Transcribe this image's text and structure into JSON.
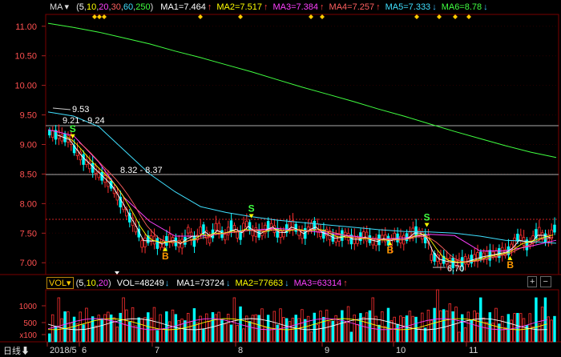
{
  "price_panel": {
    "indicator_label": "MA",
    "params": [
      "5",
      "10",
      "20",
      "30",
      "60",
      "250"
    ],
    "ma": [
      {
        "label": "MA1=7.464",
        "arrow": "↑",
        "color": "#ffffff"
      },
      {
        "label": "MA2=7.517",
        "arrow": "↑",
        "color": "#ffff00"
      },
      {
        "label": "MA3=7.384",
        "arrow": "↑",
        "color": "#ff40ff"
      },
      {
        "label": "MA4=7.257",
        "arrow": "↑",
        "color": "#ff6060"
      },
      {
        "label": "MA5=7.333",
        "arrow": "↓",
        "color": "#40e0ff"
      },
      {
        "label": "MA6=8.78",
        "arrow": "↓",
        "color": "#40ff40"
      }
    ],
    "y_ticks": [
      "11.00",
      "10.50",
      "10.00",
      "9.50",
      "9.00",
      "8.50",
      "8.00",
      "7.50",
      "7.00"
    ],
    "annotations": {
      "high": "9.53",
      "range1": "9.21 - 9.24",
      "range2": "8.32 - 8.37",
      "low": "6.70"
    },
    "signals": [
      {
        "text": "S",
        "x_day": 8,
        "price": 9.05
      },
      {
        "text": "B",
        "x_day": 38,
        "price": 7.25
      },
      {
        "text": "S",
        "x_day": 66,
        "price": 7.7
      },
      {
        "text": "B",
        "x_day": 111,
        "price": 7.35
      },
      {
        "text": "S",
        "x_day": 123,
        "price": 7.55
      },
      {
        "text": "B",
        "x_day": 150,
        "price": 7.1
      }
    ]
  },
  "vol_panel": {
    "indicator_label": "VOL",
    "params": [
      "5",
      "10",
      "20"
    ],
    "vol": {
      "label": "VOL=48249",
      "arrow": "↓",
      "color": "#ffffff"
    },
    "ma": [
      {
        "label": "MA1=73724",
        "arrow": "↓",
        "color": "#ffffff"
      },
      {
        "label": "MA2=77663",
        "arrow": "↓",
        "color": "#ffff00"
      },
      {
        "label": "MA3=63314",
        "arrow": "↑",
        "color": "#ff40ff"
      }
    ],
    "y_ticks": [
      "1000",
      "500",
      "x100"
    ]
  },
  "time_axis": {
    "period": "日线",
    "labels": [
      "2018/5",
      "6",
      "7",
      "8",
      "9",
      "10",
      "11"
    ]
  },
  "chart_data": {
    "type": "candlestick",
    "ylim": [
      6.8,
      11.2
    ],
    "series": [
      {
        "name": "MA6",
        "values": [
          11.05,
          10.98,
          10.9,
          10.8,
          10.7,
          10.58,
          10.47,
          10.35,
          10.23,
          10.1,
          9.97,
          9.85,
          9.73,
          9.6,
          9.48,
          9.35,
          9.22,
          9.1,
          8.98,
          8.87,
          8.78
        ]
      },
      {
        "name": "MA5",
        "values": [
          9.55,
          9.48,
          9.3,
          8.9,
          8.5,
          8.2,
          7.95,
          7.85,
          7.78,
          7.72,
          7.68,
          7.64,
          7.6,
          7.56,
          7.53,
          7.52,
          7.5,
          7.45,
          7.38,
          7.36,
          7.33
        ]
      },
      {
        "name": "MA3",
        "values": [
          9.25,
          9.15,
          8.7,
          8.1,
          7.7,
          7.45,
          7.45,
          7.5,
          7.55,
          7.58,
          7.55,
          7.5,
          7.45,
          7.4,
          7.42,
          7.48,
          7.46,
          7.2,
          7.2,
          7.28,
          7.38
        ]
      }
    ]
  }
}
